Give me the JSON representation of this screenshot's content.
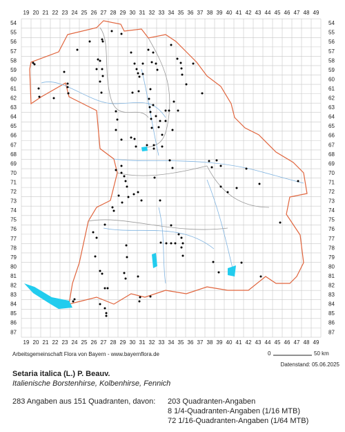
{
  "grid": {
    "columns": [
      19,
      20,
      21,
      22,
      23,
      24,
      25,
      26,
      27,
      28,
      29,
      30,
      31,
      32,
      33,
      34,
      35,
      36,
      37,
      38,
      39,
      40,
      41,
      42,
      43,
      44,
      45,
      46,
      47,
      48,
      49
    ],
    "rows": [
      54,
      55,
      56,
      57,
      58,
      59,
      60,
      61,
      62,
      63,
      64,
      65,
      66,
      67,
      68,
      69,
      70,
      71,
      72,
      73,
      74,
      75,
      76,
      77,
      78,
      79,
      80,
      81,
      82,
      83,
      84,
      85,
      86,
      87
    ]
  },
  "footer": {
    "credit": "Arbeitsgemeinschaft Flora von Bayern - www.bayernflora.de",
    "scale_start": "0",
    "scale_end": "50 km",
    "date": "Datenstand: 05.06.2025"
  },
  "species": {
    "name": "Setaria italica (L.) P. Beauv.",
    "common": "Italienische Borstenhirse, Kolbenhirse, Fennich"
  },
  "stats": {
    "summary": "283 Angaben aus 151 Quadranten, davon:",
    "lines": [
      "203 Quadranten-Angaben",
      "8 1/4-Quadranten-Angaben (1/16 MTB)",
      "72 1/16-Quadranten-Angaben (1/64 MTB)"
    ]
  }
}
